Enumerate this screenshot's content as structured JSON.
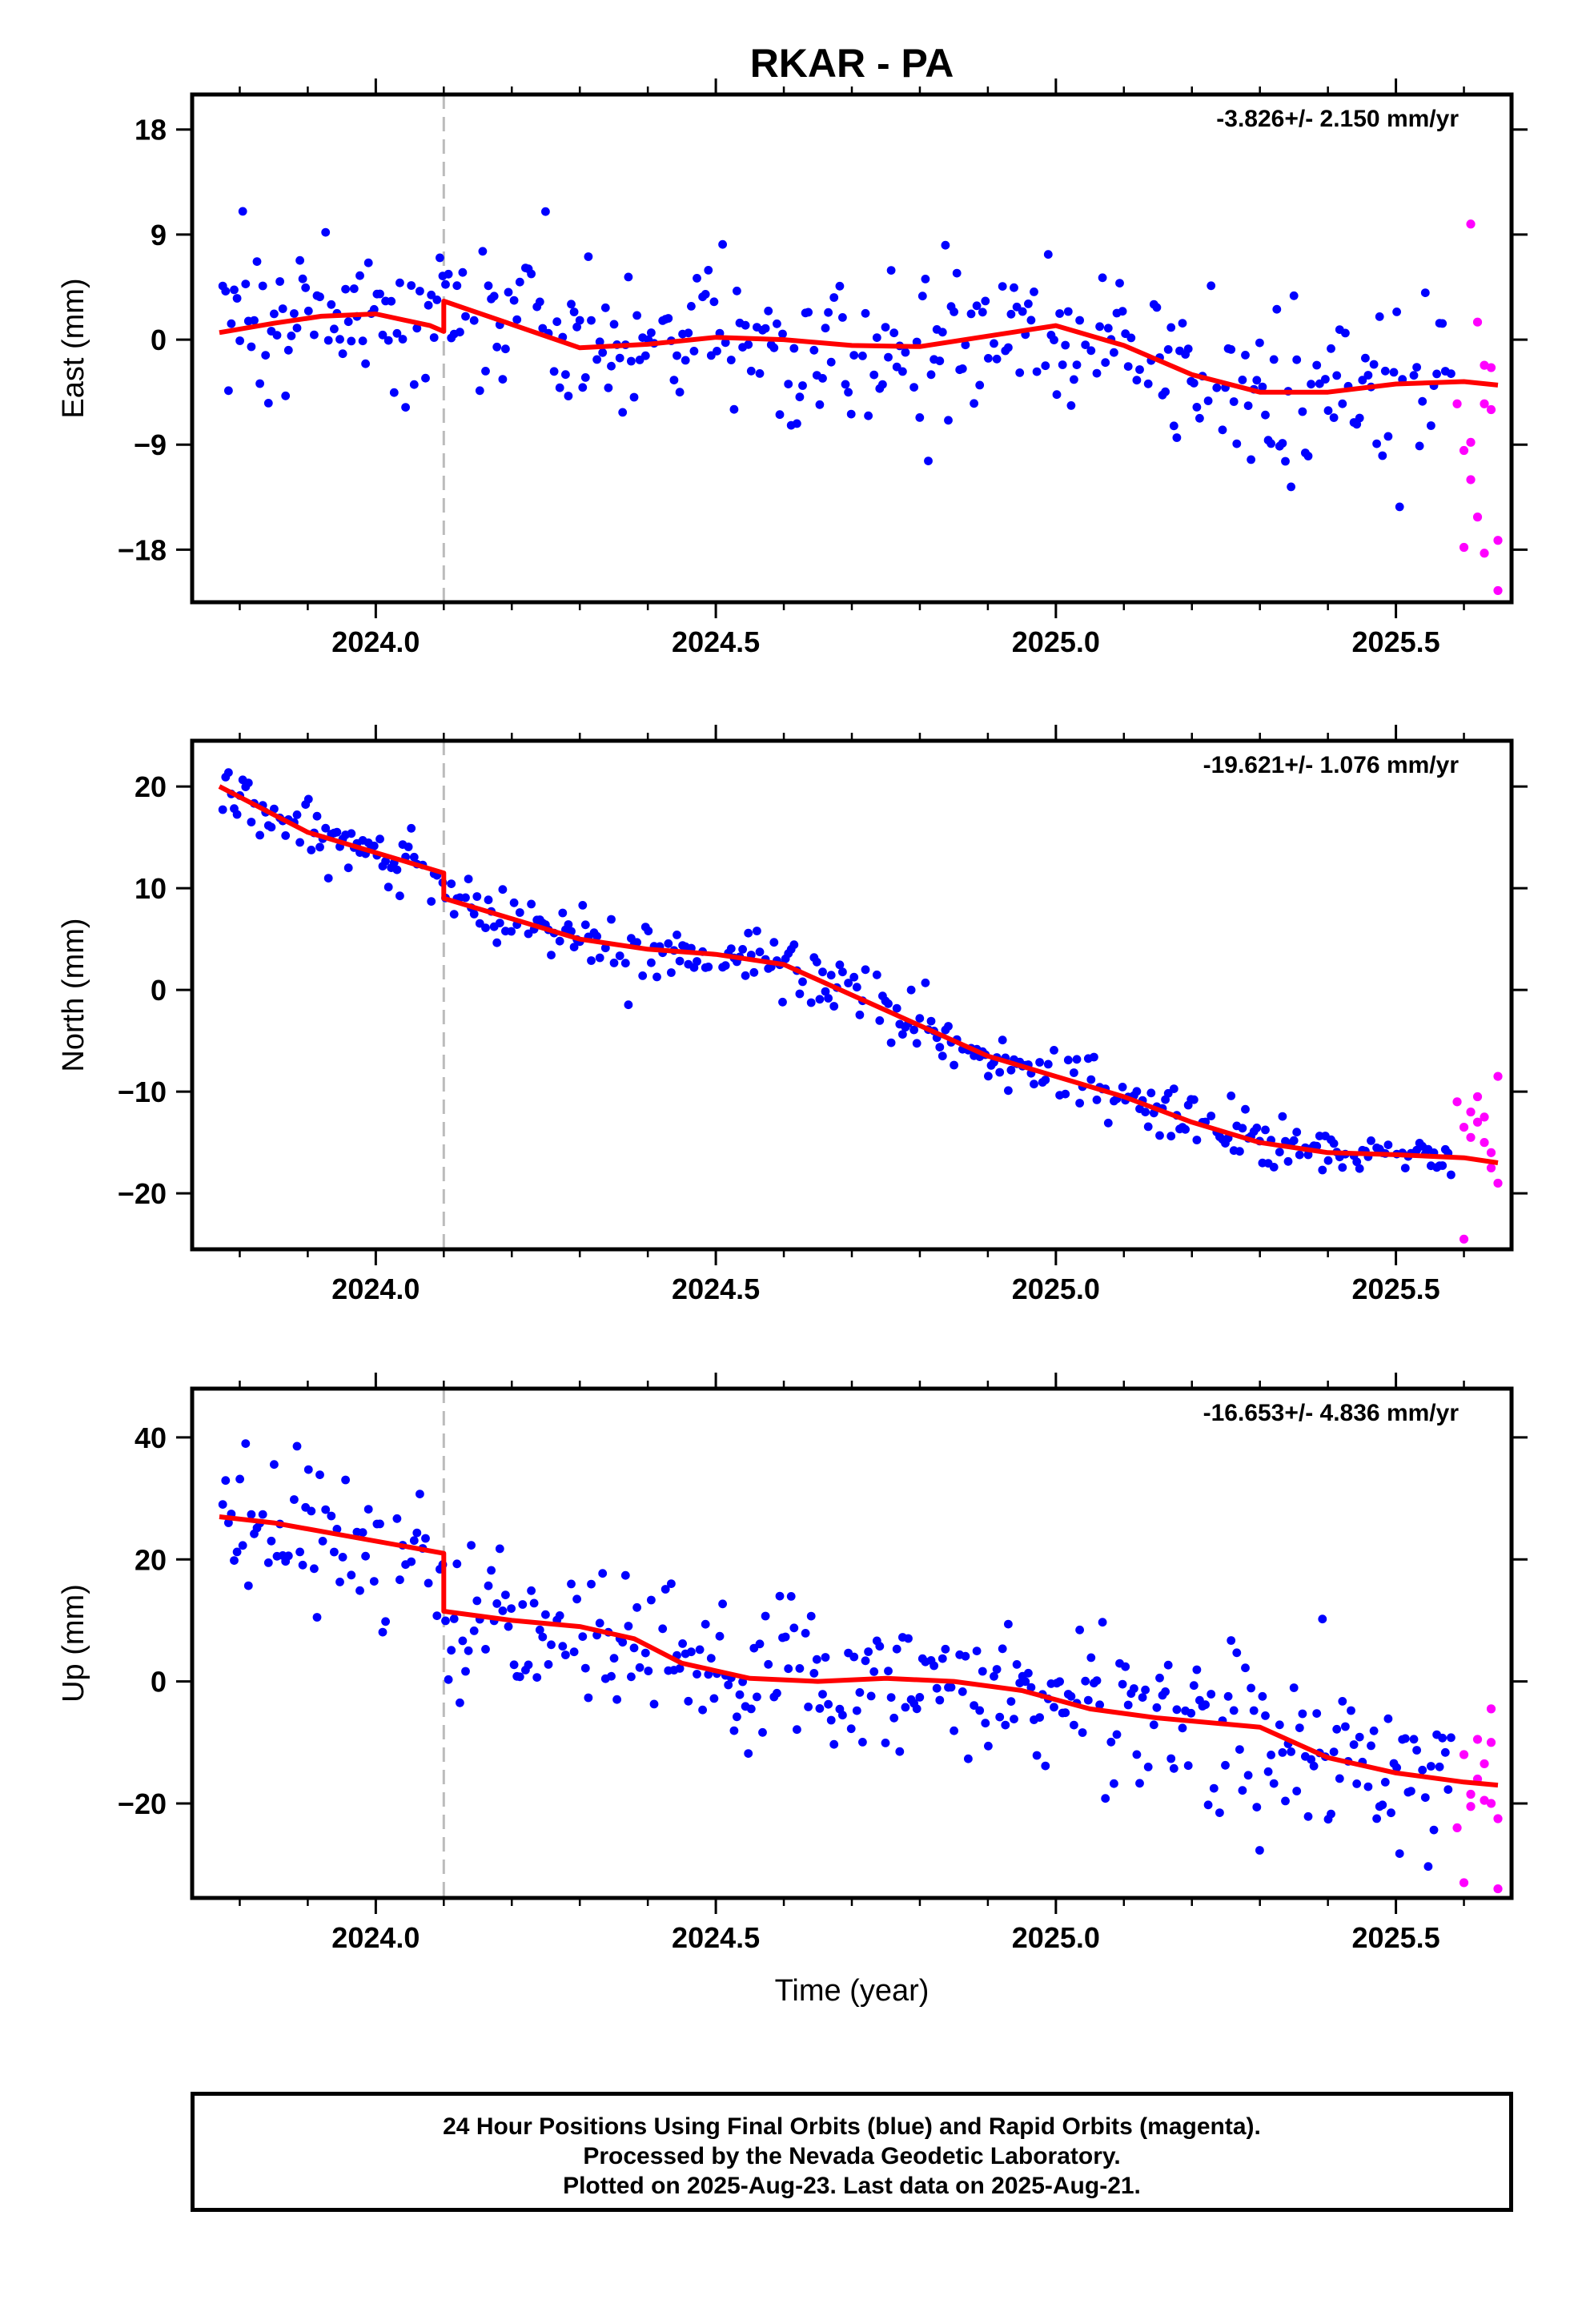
{
  "title": "RKAR - PA",
  "footer": {
    "line1": "24 Hour Positions Using Final Orbits (blue) and Rapid Orbits (magenta).",
    "line2": "Processed by the Nevada Geodetic Laboratory.",
    "line3": "Plotted on 2025-Aug-23. Last data on 2025-Aug-21."
  },
  "colors": {
    "final_orbits": "#0000ff",
    "rapid_orbits": "#ff00ff",
    "model": "#ff0000",
    "break_line": "#bbbbbb",
    "frame": "#000000"
  },
  "chart_data": [
    {
      "type": "scatter",
      "panel": "east",
      "ylabel": "East (mm)",
      "xlabel": "",
      "rate": "-3.826+/- 2.150 mm/yr",
      "xlim": [
        2023.73,
        2025.67
      ],
      "ylim": [
        -22.5,
        21
      ],
      "xticks": [
        2024.0,
        2024.5,
        2025.0,
        2025.5
      ],
      "xtick_labels": [
        "2024.0",
        "2024.5",
        "2025.0",
        "2025.5"
      ],
      "yticks": [
        18,
        9,
        0,
        -9,
        -18
      ],
      "ytick_labels": [
        "18",
        "9",
        "0",
        "−9",
        "−18"
      ],
      "break_year": 2024.1,
      "model": {
        "x": [
          2023.77,
          2023.85,
          2023.92,
          2024.0,
          2024.08,
          2024.1,
          2024.1,
          2024.2,
          2024.3,
          2024.4,
          2024.5,
          2024.6,
          2024.7,
          2024.8,
          2024.9,
          2025.0,
          2025.1,
          2025.2,
          2025.3,
          2025.4,
          2025.5,
          2025.6,
          2025.65
        ],
        "y": [
          0.6,
          1.4,
          2.0,
          2.2,
          1.2,
          0.7,
          3.3,
          1.3,
          -0.7,
          -0.4,
          0.2,
          0.0,
          -0.5,
          -0.6,
          0.3,
          1.2,
          -0.5,
          -3.0,
          -4.5,
          -4.5,
          -3.8,
          -3.6,
          -3.9
        ]
      },
      "rapid": {
        "x": [
          2025.59,
          2025.6,
          2025.6,
          2025.61,
          2025.61,
          2025.61,
          2025.62,
          2025.62,
          2025.63,
          2025.63,
          2025.63,
          2025.64,
          2025.64,
          2025.65,
          2025.65
        ],
        "y": [
          -5.5,
          -9.5,
          -17.8,
          -12.0,
          -8.8,
          9.9,
          -15.2,
          1.5,
          -18.3,
          -5.5,
          -2.2,
          -2.4,
          -6.0,
          -17.2,
          -21.5
        ]
      }
    },
    {
      "type": "scatter",
      "panel": "north",
      "ylabel": "North (mm)",
      "xlabel": "",
      "rate": "-19.621+/- 1.076 mm/yr",
      "xlim": [
        2023.73,
        2025.67
      ],
      "ylim": [
        -25.5,
        24.5
      ],
      "xticks": [
        2024.0,
        2024.5,
        2025.0,
        2025.5
      ],
      "xtick_labels": [
        "2024.0",
        "2024.5",
        "2025.0",
        "2025.5"
      ],
      "yticks": [
        20,
        10,
        0,
        -10,
        -20
      ],
      "ytick_labels": [
        "20",
        "10",
        "0",
        "−10",
        "−20"
      ],
      "break_year": 2024.1,
      "model": {
        "x": [
          2023.77,
          2023.9,
          2024.0,
          2024.1,
          2024.1,
          2024.2,
          2024.3,
          2024.4,
          2024.5,
          2024.6,
          2024.7,
          2024.8,
          2024.9,
          2025.0,
          2025.1,
          2025.2,
          2025.3,
          2025.4,
          2025.5,
          2025.6,
          2025.65
        ],
        "y": [
          20.0,
          15.5,
          13.5,
          11.5,
          9.0,
          7.0,
          5.0,
          4.0,
          3.5,
          2.5,
          -0.5,
          -3.5,
          -6.5,
          -8.5,
          -10.5,
          -13.0,
          -15.0,
          -16.0,
          -16.2,
          -16.5,
          -17.0
        ]
      },
      "rapid": {
        "x": [
          2025.59,
          2025.6,
          2025.6,
          2025.61,
          2025.61,
          2025.62,
          2025.62,
          2025.63,
          2025.63,
          2025.64,
          2025.64,
          2025.65,
          2025.65
        ],
        "y": [
          -11.0,
          -13.5,
          -24.5,
          -12.0,
          -14.5,
          -10.5,
          -13.0,
          -15.0,
          -12.5,
          -17.5,
          -16.0,
          -19.0,
          -8.5
        ]
      }
    },
    {
      "type": "scatter",
      "panel": "up",
      "ylabel": "Up (mm)",
      "xlabel": "Time (year)",
      "rate": "-16.653+/- 4.836 mm/yr",
      "xlim": [
        2023.73,
        2025.67
      ],
      "ylim": [
        -35.5,
        48
      ],
      "xticks": [
        2024.0,
        2024.5,
        2025.0,
        2025.5
      ],
      "xtick_labels": [
        "2024.0",
        "2024.5",
        "2025.0",
        "2025.5"
      ],
      "yticks": [
        40,
        20,
        0,
        -20
      ],
      "ytick_labels": [
        "40",
        "20",
        "0",
        "−20"
      ],
      "break_year": 2024.1,
      "model": {
        "x": [
          2023.77,
          2023.85,
          2023.95,
          2024.05,
          2024.1,
          2024.1,
          2024.2,
          2024.3,
          2024.38,
          2024.45,
          2024.55,
          2024.65,
          2024.75,
          2024.85,
          2024.95,
          2025.05,
          2025.15,
          2025.25,
          2025.3,
          2025.4,
          2025.5,
          2025.6,
          2025.65
        ],
        "y": [
          27.0,
          26.0,
          24.0,
          22.0,
          21.0,
          11.5,
          10.0,
          9.0,
          7.0,
          3.0,
          0.5,
          0.0,
          0.5,
          0.0,
          -1.5,
          -4.5,
          -6.0,
          -7.0,
          -7.5,
          -12.5,
          -15.0,
          -16.5,
          -17.0
        ]
      },
      "rapid": {
        "x": [
          2025.59,
          2025.6,
          2025.6,
          2025.61,
          2025.61,
          2025.62,
          2025.62,
          2025.63,
          2025.63,
          2025.64,
          2025.64,
          2025.65,
          2025.65,
          2025.64
        ],
        "y": [
          -24.0,
          -12.0,
          -33.0,
          -18.5,
          -20.5,
          -9.5,
          -16.0,
          -19.5,
          -13.5,
          -4.5,
          -20.0,
          -22.5,
          -34.0,
          -10.0
        ]
      }
    }
  ]
}
